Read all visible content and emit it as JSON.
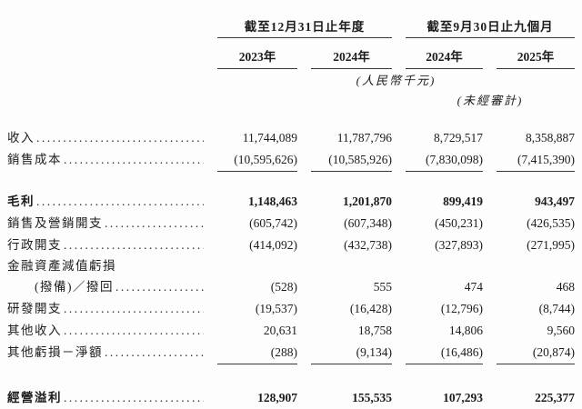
{
  "page": {
    "background_color": "#fdfdfd",
    "text_color": "#1c1c1c",
    "rule_color": "#3a3a3a"
  },
  "table": {
    "column_groups": [
      {
        "label": "截至12月31日止年度",
        "years": [
          "2023年",
          "2024年"
        ]
      },
      {
        "label": "截至9月30日止九個月",
        "years": [
          "2024年",
          "2025年"
        ]
      }
    ],
    "currency_note": "(人民幣千元)",
    "unaudited_note": "(未經審計)",
    "rows": [
      {
        "label": "收入",
        "dots": true,
        "values": [
          "11,744,089",
          "11,787,796",
          "8,729,517",
          "8,358,887"
        ]
      },
      {
        "label": "銷售成本",
        "dots": true,
        "underline": true,
        "spacer_after": 22,
        "values": [
          "(10,595,626)",
          "(10,585,926)",
          "(7,830,098)",
          "(7,415,390)"
        ]
      },
      {
        "label": "毛利",
        "dots": true,
        "bold": true,
        "values": [
          "1,148,463",
          "1,201,870",
          "899,419",
          "943,497"
        ]
      },
      {
        "label": "銷售及營銷開支",
        "dots": true,
        "values": [
          "(605,742)",
          "(607,348)",
          "(450,231)",
          "(426,535)"
        ]
      },
      {
        "label": "行政開支",
        "dots": true,
        "values": [
          "(414,092)",
          "(432,738)",
          "(327,893)",
          "(271,995)"
        ]
      },
      {
        "label": "金融資產減值虧損",
        "dots": false,
        "compact": true,
        "values": []
      },
      {
        "label": "(撥備)／撥回",
        "dots": true,
        "indent": true,
        "values": [
          "(528)",
          "555",
          "474",
          "468"
        ]
      },
      {
        "label": "研發開支",
        "dots": true,
        "values": [
          "(19,537)",
          "(16,428)",
          "(12,796)",
          "(8,744)"
        ]
      },
      {
        "label": "其他收入",
        "dots": true,
        "values": [
          "20,631",
          "18,758",
          "14,806",
          "9,560"
        ]
      },
      {
        "label": "其他虧損－淨額",
        "dots": true,
        "underline": true,
        "spacer_after": 26,
        "values": [
          "(288)",
          "(9,134)",
          "(16,486)",
          "(20,874)"
        ]
      },
      {
        "label": "經營溢利",
        "dots": true,
        "bold": true,
        "values": [
          "128,907",
          "155,535",
          "107,293",
          "225,377"
        ]
      }
    ]
  }
}
